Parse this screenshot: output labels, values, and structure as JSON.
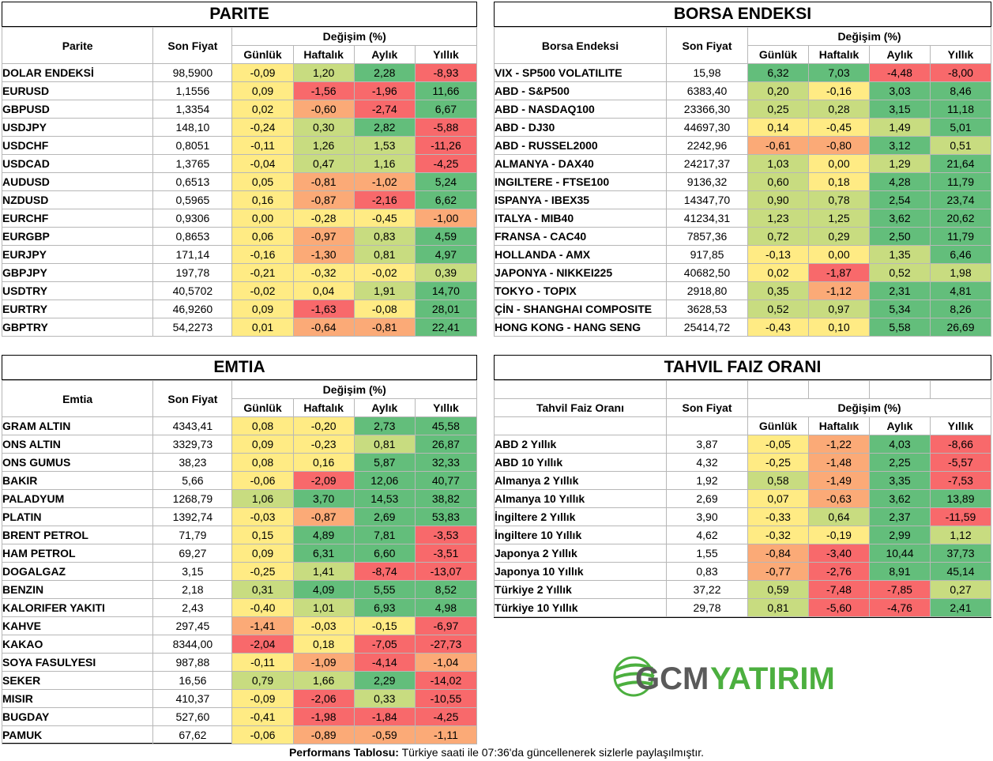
{
  "parite": {
    "title": "PARITE",
    "h_name": "Parite",
    "h_price": "Son Fiyat",
    "h_change": "Değişim (%)",
    "h_cols": [
      "Günlük",
      "Haftalık",
      "Aylık",
      "Yıllık"
    ],
    "rows": [
      {
        "name": "DOLAR ENDEKSİ",
        "price": "98,5900",
        "c": [
          "-0,09",
          "1,20",
          "2,28",
          "-8,93"
        ]
      },
      {
        "name": "EURUSD",
        "price": "1,1556",
        "c": [
          "0,09",
          "-1,56",
          "-1,96",
          "11,66"
        ]
      },
      {
        "name": "GBPUSD",
        "price": "1,3354",
        "c": [
          "0,02",
          "-0,60",
          "-2,74",
          "6,67"
        ]
      },
      {
        "name": "USDJPY",
        "price": "148,10",
        "c": [
          "-0,24",
          "0,30",
          "2,82",
          "-5,88"
        ]
      },
      {
        "name": "USDCHF",
        "price": "0,8051",
        "c": [
          "-0,11",
          "1,26",
          "1,53",
          "-11,26"
        ]
      },
      {
        "name": "USDCAD",
        "price": "1,3765",
        "c": [
          "-0,04",
          "0,47",
          "1,16",
          "-4,25"
        ]
      },
      {
        "name": "AUDUSD",
        "price": "0,6513",
        "c": [
          "0,05",
          "-0,81",
          "-1,02",
          "5,24"
        ]
      },
      {
        "name": "NZDUSD",
        "price": "0,5965",
        "c": [
          "0,16",
          "-0,87",
          "-2,16",
          "6,62"
        ]
      },
      {
        "name": "EURCHF",
        "price": "0,9306",
        "c": [
          "0,00",
          "-0,28",
          "-0,45",
          "-1,00"
        ]
      },
      {
        "name": "EURGBP",
        "price": "0,8653",
        "c": [
          "0,06",
          "-0,97",
          "0,83",
          "4,59"
        ]
      },
      {
        "name": "EURJPY",
        "price": "171,14",
        "c": [
          "-0,16",
          "-1,30",
          "0,81",
          "4,97"
        ]
      },
      {
        "name": "GBPJPY",
        "price": "197,78",
        "c": [
          "-0,21",
          "-0,32",
          "-0,02",
          "0,39"
        ]
      },
      {
        "name": "USDTRY",
        "price": "40,5702",
        "c": [
          "-0,02",
          "0,04",
          "1,91",
          "14,70"
        ]
      },
      {
        "name": "EURTRY",
        "price": "46,9260",
        "c": [
          "0,09",
          "-1,63",
          "-0,08",
          "28,01"
        ]
      },
      {
        "name": "GBPTRY",
        "price": "54,2273",
        "c": [
          "0,01",
          "-0,64",
          "-0,81",
          "22,41"
        ]
      }
    ]
  },
  "borsa": {
    "title": "BORSA ENDEKSI",
    "h_name": "Borsa Endeksi",
    "h_price": "Son Fiyat",
    "h_change": "Değişim (%)",
    "h_cols": [
      "Günlük",
      "Haftalık",
      "Aylık",
      "Yıllık"
    ],
    "rows": [
      {
        "name": "VIX  - SP500 VOLATILITE",
        "price": "15,98",
        "c": [
          "6,32",
          "7,03",
          "-4,48",
          "-8,00"
        ]
      },
      {
        "name": "ABD - S&P500",
        "price": "6383,40",
        "c": [
          "0,20",
          "-0,16",
          "3,03",
          "8,46"
        ]
      },
      {
        "name": "ABD - NASDAQ100",
        "price": "23366,30",
        "c": [
          "0,25",
          "0,28",
          "3,15",
          "11,18"
        ]
      },
      {
        "name": "ABD - DJ30",
        "price": "44697,30",
        "c": [
          "0,14",
          "-0,45",
          "1,49",
          "5,01"
        ]
      },
      {
        "name": "ABD - RUSSEL2000",
        "price": "2242,96",
        "c": [
          "-0,61",
          "-0,80",
          "3,12",
          "0,51"
        ]
      },
      {
        "name": "ALMANYA - DAX40",
        "price": "24217,37",
        "c": [
          "1,03",
          "0,00",
          "1,29",
          "21,64"
        ]
      },
      {
        "name": "INGILTERE - FTSE100",
        "price": "9136,32",
        "c": [
          "0,60",
          "0,18",
          "4,28",
          "11,79"
        ]
      },
      {
        "name": "ISPANYA - IBEX35",
        "price": "14347,70",
        "c": [
          "0,90",
          "0,78",
          "2,54",
          "23,74"
        ]
      },
      {
        "name": "ITALYA - MIB40",
        "price": "41234,31",
        "c": [
          "1,23",
          "1,25",
          "3,62",
          "20,62"
        ]
      },
      {
        "name": "FRANSA - CAC40",
        "price": "7857,36",
        "c": [
          "0,72",
          "0,29",
          "2,50",
          "11,79"
        ]
      },
      {
        "name": "HOLLANDA - AMX",
        "price": "917,85",
        "c": [
          "-0,13",
          "0,00",
          "1,35",
          "6,46"
        ]
      },
      {
        "name": "JAPONYA - NIKKEI225",
        "price": "40682,50",
        "c": [
          "0,02",
          "-1,87",
          "0,52",
          "1,98"
        ]
      },
      {
        "name": "TOKYO - TOPIX",
        "price": "2918,80",
        "c": [
          "0,35",
          "-1,12",
          "2,31",
          "4,81"
        ]
      },
      {
        "name": "ÇİN - SHANGHAI COMPOSITE",
        "price": "3628,53",
        "c": [
          "0,52",
          "0,97",
          "5,34",
          "8,26"
        ]
      },
      {
        "name": "HONG KONG - HANG SENG",
        "price": "25414,72",
        "c": [
          "-0,43",
          "0,10",
          "5,58",
          "26,69"
        ]
      }
    ]
  },
  "emtia": {
    "title": "EMTIA",
    "h_name": "Emtia",
    "h_price": "Son Fiyat",
    "h_change": "Değişim (%)",
    "h_cols": [
      "Günlük",
      "Haftalık",
      "Aylık",
      "Yıllık"
    ],
    "rows": [
      {
        "name": "GRAM ALTIN",
        "price": "4343,41",
        "c": [
          "0,08",
          "-0,20",
          "2,73",
          "45,58"
        ]
      },
      {
        "name": "ONS ALTIN",
        "price": "3329,73",
        "c": [
          "0,09",
          "-0,23",
          "0,81",
          "26,87"
        ]
      },
      {
        "name": "ONS GUMUS",
        "price": "38,23",
        "c": [
          "0,08",
          "0,16",
          "5,87",
          "32,33"
        ]
      },
      {
        "name": "BAKIR",
        "price": "5,66",
        "c": [
          "-0,06",
          "-2,09",
          "12,06",
          "40,77"
        ]
      },
      {
        "name": "PALADYUM",
        "price": "1268,79",
        "c": [
          "1,06",
          "3,70",
          "14,53",
          "38,82"
        ]
      },
      {
        "name": "PLATIN",
        "price": "1392,74",
        "c": [
          "-0,03",
          "-0,87",
          "2,69",
          "53,83"
        ]
      },
      {
        "name": "BRENT PETROL",
        "price": "71,79",
        "c": [
          "0,15",
          "4,89",
          "7,81",
          "-3,53"
        ]
      },
      {
        "name": "HAM PETROL",
        "price": "69,27",
        "c": [
          "0,09",
          "6,31",
          "6,60",
          "-3,51"
        ]
      },
      {
        "name": "DOGALGAZ",
        "price": "3,15",
        "c": [
          "-0,25",
          "1,41",
          "-8,74",
          "-13,07"
        ]
      },
      {
        "name": "BENZIN",
        "price": "2,18",
        "c": [
          "0,31",
          "4,09",
          "5,55",
          "8,52"
        ]
      },
      {
        "name": "KALORIFER YAKITI",
        "price": "2,43",
        "c": [
          "-0,40",
          "1,01",
          "6,93",
          "4,98"
        ]
      },
      {
        "name": "KAHVE",
        "price": "297,45",
        "c": [
          "-1,41",
          "-0,03",
          "-0,15",
          "-6,97"
        ]
      },
      {
        "name": "KAKAO",
        "price": "8344,00",
        "c": [
          "-2,04",
          "0,18",
          "-7,05",
          "-27,73"
        ]
      },
      {
        "name": "SOYA FASULYESI",
        "price": "987,88",
        "c": [
          "-0,11",
          "-1,09",
          "-4,14",
          "-1,04"
        ]
      },
      {
        "name": "SEKER",
        "price": "16,56",
        "c": [
          "0,79",
          "1,66",
          "2,29",
          "-14,02"
        ]
      },
      {
        "name": "MISIR",
        "price": "410,37",
        "c": [
          "-0,09",
          "-2,06",
          "0,33",
          "-10,55"
        ]
      },
      {
        "name": "BUGDAY",
        "price": "527,60",
        "c": [
          "-0,41",
          "-1,98",
          "-1,84",
          "-4,25"
        ]
      },
      {
        "name": "PAMUK",
        "price": "67,62",
        "c": [
          "-0,06",
          "-0,89",
          "-0,59",
          "-1,11"
        ]
      }
    ]
  },
  "tahvil": {
    "title": "TAHVIL FAIZ ORANI",
    "h_name": "Tahvil Faiz Oranı",
    "h_price": "Son Fiyat",
    "h_change": "Değişim (%)",
    "h_cols": [
      "Günlük",
      "Haftalık",
      "Aylık",
      "Yıllık"
    ],
    "rows": [
      {
        "name": "ABD 2 Yıllık",
        "price": "3,87",
        "c": [
          "-0,05",
          "-1,22",
          "4,03",
          "-8,66"
        ]
      },
      {
        "name": "ABD 10 Yıllık",
        "price": "4,32",
        "c": [
          "-0,25",
          "-1,48",
          "2,25",
          "-5,57"
        ]
      },
      {
        "name": "Almanya 2 Yıllık",
        "price": "1,92",
        "c": [
          "0,58",
          "-1,49",
          "3,35",
          "-7,53"
        ]
      },
      {
        "name": "Almanya 10 Yıllık",
        "price": "2,69",
        "c": [
          "0,07",
          "-0,63",
          "3,62",
          "13,89"
        ]
      },
      {
        "name": "İngiltere 2 Yıllık",
        "price": "3,90",
        "c": [
          "-0,33",
          "0,64",
          "2,37",
          "-11,59"
        ]
      },
      {
        "name": "İngiltere 10 Yıllık",
        "price": "4,62",
        "c": [
          "-0,32",
          "-0,19",
          "2,99",
          "1,12"
        ]
      },
      {
        "name": "Japonya 2 Yıllık",
        "price": "1,55",
        "c": [
          "-0,84",
          "-3,40",
          "10,44",
          "37,73"
        ]
      },
      {
        "name": "Japonya 10 Yıllık",
        "price": "0,83",
        "c": [
          "-0,77",
          "-2,76",
          "8,91",
          "45,14"
        ]
      },
      {
        "name": "Türkiye 2 Yıllık",
        "price": "37,22",
        "c": [
          "0,59",
          "-7,48",
          "-7,85",
          "0,27"
        ]
      },
      {
        "name": "Türkiye 10 Yıllık",
        "price": "29,78",
        "c": [
          "0,81",
          "-5,60",
          "-4,76",
          "2,41"
        ]
      }
    ]
  },
  "logo": {
    "part1": "GCM",
    "part2": "YATIRIM",
    "color1": "#5a5a5a",
    "color2": "#4caf3f"
  },
  "footer": {
    "bold": "Performans Tablosu:",
    "text": " Türkiye saati ile 07:36'da güncellenerek sizlerle paylaşılmıştır."
  },
  "colors": {
    "red": "#f8696b",
    "orange": "#fbaa77",
    "yellow": "#ffeb84",
    "lightgreen": "#c8dc80",
    "green": "#63be7b"
  }
}
